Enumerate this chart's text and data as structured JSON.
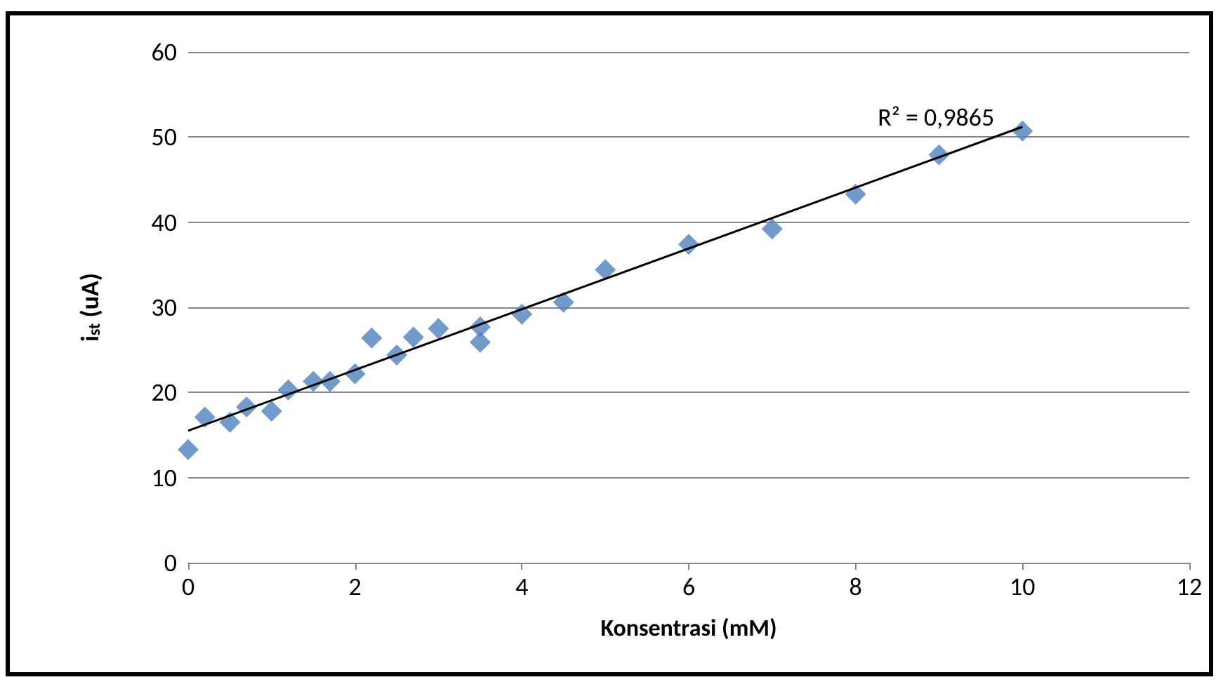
{
  "chart_data": {
    "type": "scatter",
    "xlabel": "Konsentrasi (mM)",
    "ylabel": "i$_{st}$ (uA)",
    "xlim": [
      0,
      12
    ],
    "xticks": [
      0,
      2,
      4,
      6,
      8,
      10,
      12
    ],
    "ylim": [
      0,
      60
    ],
    "yticks": [
      0,
      10,
      20,
      30,
      40,
      50,
      60
    ],
    "grid": "y",
    "marker": "diamond",
    "annotations": [
      "R² = 0,9865"
    ],
    "series": [
      {
        "color": "#4f81bd",
        "x": [
          0,
          0.2,
          0.5,
          0.7,
          1.0,
          1.2,
          1.5,
          1.7,
          2.0,
          2.2,
          2.5,
          2.7,
          3.0,
          3.5,
          3.5,
          4,
          4.5,
          5,
          6,
          7,
          8,
          9,
          10
        ],
        "values": [
          13.3,
          17.1,
          16.5,
          18.3,
          17.8,
          20.3,
          21.3,
          21.3,
          22.2,
          26.4,
          24.4,
          26.5,
          27.5,
          27.7,
          25.9,
          29.2,
          30.6,
          34.4,
          37.4,
          39.2,
          43.3,
          47.9,
          50.7
        ]
      },
      {
        "type": "line",
        "color": "#000000",
        "marker": "none",
        "x": [
          0,
          10
        ],
        "values": [
          15.5,
          51.2
        ]
      }
    ]
  }
}
